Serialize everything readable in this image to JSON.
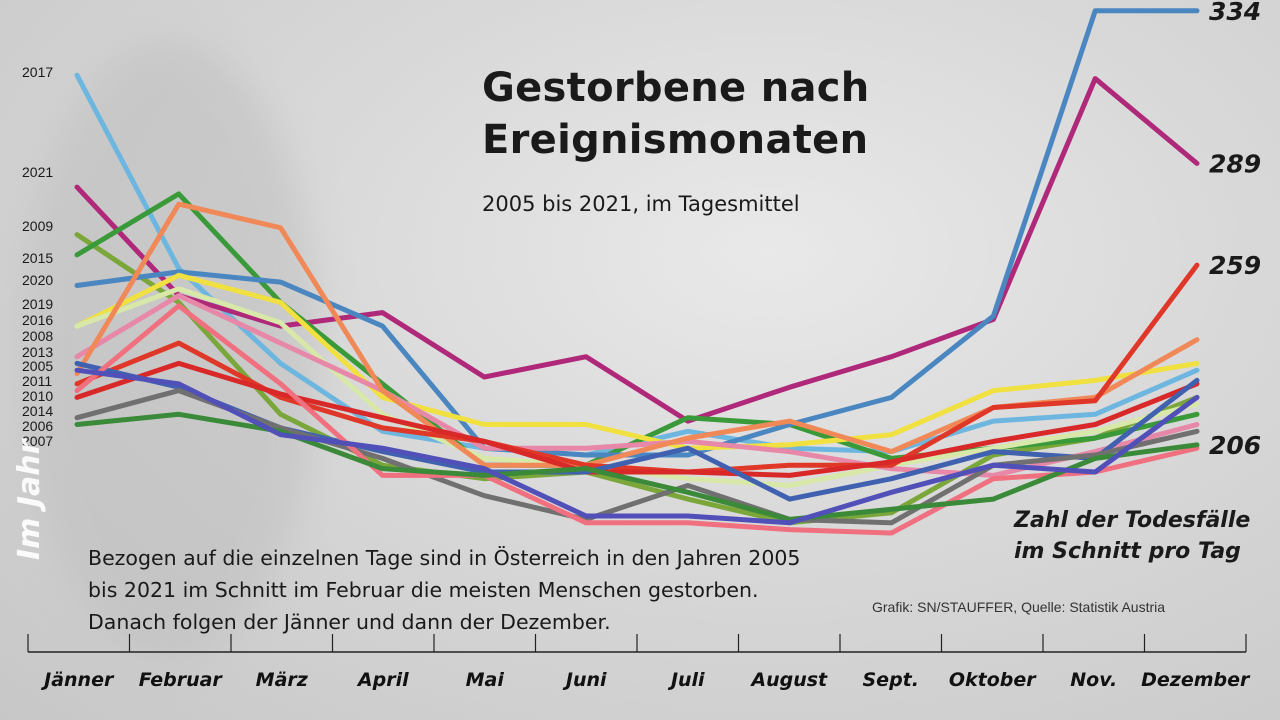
{
  "title": "Gestorbene nach Ereignismonaten",
  "subtitle": "2005 bis 2021, im Tagesmittel",
  "unit_note_line1": "Zahl der Todesfälle",
  "unit_note_line2": "im Schnitt pro Tag",
  "side_label": "Im Jahr",
  "body_text": "Bezogen auf die einzelnen Tage sind in Österreich in den Jahren 2005 bis 2021 im Schnitt im Februar die meisten Menschen gestorben. Danach folgen der Jänner und dann der Dezember.",
  "source": "Grafik: SN/STAUFFER, Quelle: Statistik Austria",
  "chart_data": {
    "type": "line",
    "categories": [
      "Jänner",
      "Februar",
      "März",
      "April",
      "Mai",
      "Juni",
      "Juli",
      "August",
      "Sept.",
      "Oktober",
      "Nov.",
      "Dezember"
    ],
    "ylim": [
      180,
      336
    ],
    "end_labels": [
      {
        "text": "334",
        "value": 334
      },
      {
        "text": "289",
        "value": 289
      },
      {
        "text": "259",
        "value": 259
      },
      {
        "text": "206",
        "value": 206
      }
    ],
    "series": [
      {
        "name": "2017",
        "color": "#6db6e0",
        "values": [
          315,
          258,
          230,
          210,
          205,
          203,
          210,
          205,
          204,
          213,
          215,
          228
        ]
      },
      {
        "name": "2021",
        "color": "#b0287a",
        "values": [
          282,
          250,
          241,
          245,
          226,
          232,
          213,
          223,
          232,
          243,
          314,
          289
        ]
      },
      {
        "name": "2009",
        "color": "#7aa63a",
        "values": [
          268,
          248,
          215,
          200,
          196,
          198,
          190,
          183,
          186,
          203,
          208,
          220
        ]
      },
      {
        "name": "2015",
        "color": "#3a9a3a",
        "values": [
          262,
          280,
          248,
          224,
          200,
          200,
          214,
          212,
          202,
          205,
          208,
          215
        ]
      },
      {
        "name": "2020",
        "color": "#4a86c0",
        "values": [
          253,
          257,
          254,
          241,
          205,
          203,
          203,
          212,
          220,
          244,
          334,
          334
        ]
      },
      {
        "name": "2019",
        "color": "#f0e040",
        "values": [
          241,
          256,
          248,
          220,
          212,
          212,
          205,
          206,
          209,
          222,
          225,
          230
        ]
      },
      {
        "name": "2016",
        "color": "#d8e8a8",
        "values": [
          241,
          252,
          242,
          215,
          202,
          200,
          196,
          194,
          200,
          205,
          210,
          218
        ]
      },
      {
        "name": "2008",
        "color": "#e888a8",
        "values": [
          232,
          250,
          236,
          222,
          205,
          205,
          207,
          204,
          199,
          197,
          204,
          212
        ]
      },
      {
        "name": "2013",
        "color": "#f08858",
        "values": [
          227,
          277,
          270,
          222,
          200,
          200,
          208,
          213,
          204,
          217,
          220,
          237
        ]
      },
      {
        "name": "2005",
        "color": "#e03828",
        "values": [
          224,
          236,
          220,
          211,
          207,
          200,
          198,
          200,
          200,
          217,
          219,
          259
        ]
      },
      {
        "name": "2011",
        "color": "#d82828",
        "values": [
          220,
          230,
          221,
          214,
          207,
          198,
          198,
          197,
          201,
          207,
          212,
          224
        ]
      },
      {
        "name": "2010",
        "color": "#4060b0",
        "values": [
          230,
          223,
          211,
          204,
          198,
          198,
          205,
          190,
          196,
          204,
          202,
          225
        ]
      },
      {
        "name": "2014",
        "color": "#707070",
        "values": [
          214,
          222,
          211,
          202,
          191,
          184,
          194,
          184,
          183,
          200,
          203,
          210
        ]
      },
      {
        "name": "2006",
        "color": "#f07080",
        "values": [
          222,
          247,
          224,
          197,
          197,
          183,
          183,
          181,
          180,
          196,
          198,
          205
        ]
      },
      {
        "name": "2007",
        "color": "#3a8a3a",
        "values": [
          212,
          215,
          210,
          199,
          197,
          199,
          192,
          184,
          187,
          190,
          202,
          206
        ]
      },
      {
        "name": "",
        "color": "#5050b8",
        "values": [
          228,
          224,
          209,
          205,
          199,
          185,
          185,
          183,
          192,
          200,
          198,
          220
        ]
      }
    ]
  }
}
